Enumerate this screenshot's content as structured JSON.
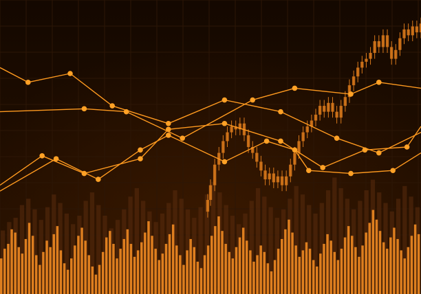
{
  "colors": {
    "background_top": "#140800",
    "background_bottom": "#2a1200",
    "grid": "#2c1606",
    "line": "#ff9a1f",
    "point": "#ffa126",
    "candle": "#d9791b",
    "volume_front": "#f08a22",
    "volume_back": "#5a2c0c"
  },
  "chart_data": {
    "type": "line",
    "title": "",
    "xlabel": "",
    "ylabel": "",
    "grid": true,
    "legend": "none",
    "x_range": [
      0,
      30
    ],
    "y_range": [
      0,
      100
    ],
    "series": [
      {
        "x": [
          0,
          2,
          5,
          8,
          12,
          16,
          20,
          24,
          27,
          30
        ],
        "y": [
          77,
          72,
          75,
          64,
          58,
          66,
          62,
          53,
          48,
          55
        ]
      },
      {
        "x": [
          0,
          6,
          9,
          13,
          18,
          21,
          25,
          27,
          30
        ],
        "y": [
          62,
          63,
          62,
          53,
          66,
          70,
          68,
          72,
          70
        ]
      },
      {
        "x": [
          0,
          3,
          6,
          10,
          12,
          16,
          20,
          23,
          26,
          29,
          30
        ],
        "y": [
          37,
          47,
          41,
          46,
          56,
          58,
          52,
          43,
          49,
          50,
          57
        ]
      },
      {
        "x": [
          0,
          4,
          7,
          10,
          12,
          16,
          19,
          21,
          22,
          25,
          28,
          30
        ],
        "y": [
          35,
          46,
          39,
          49,
          54,
          45,
          52,
          49,
          42,
          41,
          42,
          48
        ]
      }
    ],
    "candlesticks": [
      {
        "x": 14.8,
        "o": 28,
        "c": 32
      },
      {
        "x": 15.0,
        "o": 32,
        "c": 37
      },
      {
        "x": 15.3,
        "o": 37,
        "c": 44
      },
      {
        "x": 15.6,
        "o": 44,
        "c": 48
      },
      {
        "x": 15.9,
        "o": 48,
        "c": 52
      },
      {
        "x": 16.2,
        "o": 52,
        "c": 55
      },
      {
        "x": 16.5,
        "o": 55,
        "c": 57
      },
      {
        "x": 16.8,
        "o": 57,
        "c": 56
      },
      {
        "x": 17.1,
        "o": 56,
        "c": 58
      },
      {
        "x": 17.4,
        "o": 58,
        "c": 54
      },
      {
        "x": 17.7,
        "o": 54,
        "c": 50
      },
      {
        "x": 18.0,
        "o": 50,
        "c": 48
      },
      {
        "x": 18.3,
        "o": 48,
        "c": 45
      },
      {
        "x": 18.6,
        "o": 45,
        "c": 42
      },
      {
        "x": 18.9,
        "o": 42,
        "c": 39
      },
      {
        "x": 19.2,
        "o": 39,
        "c": 41
      },
      {
        "x": 19.5,
        "o": 41,
        "c": 38
      },
      {
        "x": 19.8,
        "o": 38,
        "c": 40
      },
      {
        "x": 20.1,
        "o": 40,
        "c": 37
      },
      {
        "x": 20.4,
        "o": 37,
        "c": 40
      },
      {
        "x": 20.7,
        "o": 40,
        "c": 44
      },
      {
        "x": 21.0,
        "o": 44,
        "c": 48
      },
      {
        "x": 21.3,
        "o": 48,
        "c": 52
      },
      {
        "x": 21.6,
        "o": 52,
        "c": 55
      },
      {
        "x": 21.9,
        "o": 55,
        "c": 57
      },
      {
        "x": 22.2,
        "o": 57,
        "c": 59
      },
      {
        "x": 22.5,
        "o": 59,
        "c": 61
      },
      {
        "x": 22.8,
        "o": 61,
        "c": 64
      },
      {
        "x": 23.1,
        "o": 64,
        "c": 62
      },
      {
        "x": 23.4,
        "o": 62,
        "c": 65
      },
      {
        "x": 23.7,
        "o": 65,
        "c": 62
      },
      {
        "x": 24.0,
        "o": 62,
        "c": 60
      },
      {
        "x": 24.3,
        "o": 60,
        "c": 64
      },
      {
        "x": 24.6,
        "o": 64,
        "c": 67
      },
      {
        "x": 24.9,
        "o": 67,
        "c": 71
      },
      {
        "x": 25.2,
        "o": 71,
        "c": 74
      },
      {
        "x": 25.5,
        "o": 74,
        "c": 77
      },
      {
        "x": 25.8,
        "o": 77,
        "c": 79
      },
      {
        "x": 26.1,
        "o": 79,
        "c": 80
      },
      {
        "x": 26.4,
        "o": 80,
        "c": 82
      },
      {
        "x": 26.7,
        "o": 82,
        "c": 86
      },
      {
        "x": 27.0,
        "o": 86,
        "c": 84
      },
      {
        "x": 27.3,
        "o": 84,
        "c": 88
      },
      {
        "x": 27.6,
        "o": 88,
        "c": 84
      },
      {
        "x": 27.9,
        "o": 84,
        "c": 80
      },
      {
        "x": 28.2,
        "o": 80,
        "c": 83
      },
      {
        "x": 28.5,
        "o": 83,
        "c": 87
      },
      {
        "x": 28.8,
        "o": 87,
        "c": 90
      },
      {
        "x": 29.1,
        "o": 90,
        "c": 88
      },
      {
        "x": 29.4,
        "o": 88,
        "c": 91
      },
      {
        "x": 29.7,
        "o": 91,
        "c": 89
      },
      {
        "x": 30.0,
        "o": 89,
        "c": 92
      }
    ],
    "volume_front": [
      22,
      28,
      31,
      40,
      38,
      29,
      25,
      34,
      44,
      36,
      24,
      18,
      26,
      33,
      29,
      37,
      42,
      27,
      19,
      15,
      22,
      30,
      36,
      41,
      33,
      24,
      17,
      12,
      18,
      26,
      35,
      39,
      31,
      22,
      28,
      34,
      40,
      31,
      23,
      27,
      32,
      38,
      45,
      36,
      28,
      21,
      25,
      31,
      37,
      43,
      30,
      24,
      18,
      27,
      34,
      29,
      20,
      16,
      24,
      30,
      36,
      42,
      48,
      39,
      31,
      26,
      22,
      29,
      35,
      41,
      33,
      27,
      20,
      24,
      30,
      26,
      19,
      14,
      21,
      28,
      34,
      40,
      46,
      38,
      30,
      23,
      27,
      32,
      28,
      21,
      17,
      25,
      31,
      37,
      33,
      26,
      21,
      28,
      35,
      42,
      36,
      29,
      23,
      30,
      38,
      44,
      52,
      46,
      39,
      32,
      28,
      35,
      41,
      34,
      27,
      22,
      29,
      36,
      43,
      37
    ],
    "volume_back": [
      30,
      34,
      36,
      42,
      45,
      40,
      35,
      41,
      47,
      43,
      38,
      33,
      37,
      44,
      48,
      42,
      37,
      31,
      35,
      40,
      46,
      50,
      44,
      39,
      34,
      38,
      43,
      49,
      45,
      40,
      36,
      41,
      47,
      53,
      48,
      42,
      37,
      33,
      38,
      44,
      50,
      46,
      41,
      36,
      40,
      45,
      51,
      47,
      42,
      38,
      43,
      49,
      55,
      50,
      45,
      40,
      44,
      49,
      54,
      48,
      43,
      39,
      45,
      51,
      46,
      41
    ]
  }
}
